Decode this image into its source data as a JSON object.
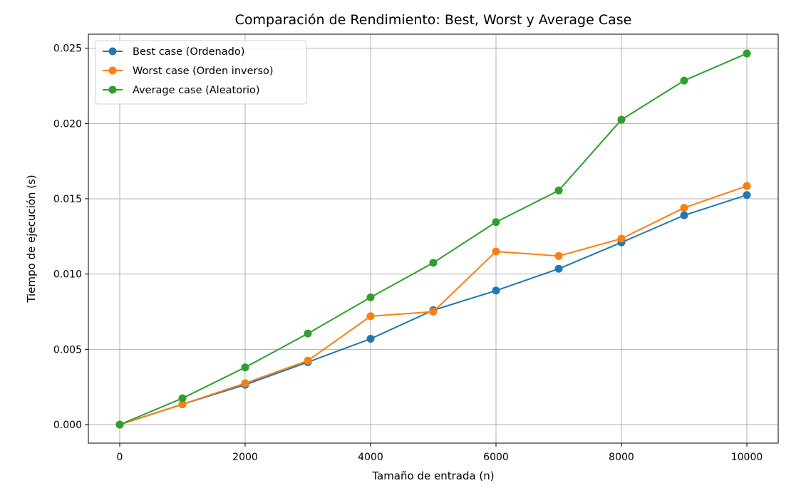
{
  "chart_data": {
    "type": "line",
    "title": "Comparación de Rendimiento: Best, Worst y Average Case",
    "xlabel": "Tamaño de entrada (n)",
    "ylabel": "Tiempo de ejecución (s)",
    "xlim": [
      -500,
      10500
    ],
    "ylim": [
      -0.00123,
      0.02593
    ],
    "xticks": [
      0,
      2000,
      4000,
      6000,
      8000,
      10000
    ],
    "xtick_labels": [
      "0",
      "2000",
      "4000",
      "6000",
      "8000",
      "10000"
    ],
    "yticks": [
      0,
      0.005,
      0.01,
      0.015,
      0.02,
      0.025
    ],
    "ytick_labels": [
      "0.000",
      "0.005",
      "0.010",
      "0.015",
      "0.020",
      "0.025"
    ],
    "grid": true,
    "legend_position": "top-left",
    "x": [
      0,
      1000,
      2000,
      3000,
      4000,
      5000,
      6000,
      7000,
      8000,
      9000,
      10000
    ],
    "series": [
      {
        "name": "Best case (Ordenado)",
        "color": "#1f77b4",
        "values": [
          0,
          0.00135,
          0.00265,
          0.00415,
          0.0057,
          0.0076,
          0.0089,
          0.01035,
          0.0121,
          0.0139,
          0.01525
        ]
      },
      {
        "name": "Worst case (Orden inverso)",
        "color": "#ff7f0e",
        "values": [
          0,
          0.00135,
          0.00275,
          0.00425,
          0.0072,
          0.0075,
          0.0115,
          0.0112,
          0.01235,
          0.0144,
          0.01585
        ]
      },
      {
        "name": "Average case (Aleatorio)",
        "color": "#2ca02c",
        "values": [
          0,
          0.00175,
          0.0038,
          0.00605,
          0.00845,
          0.01075,
          0.01345,
          0.01555,
          0.02025,
          0.02285,
          0.02465
        ]
      }
    ]
  }
}
